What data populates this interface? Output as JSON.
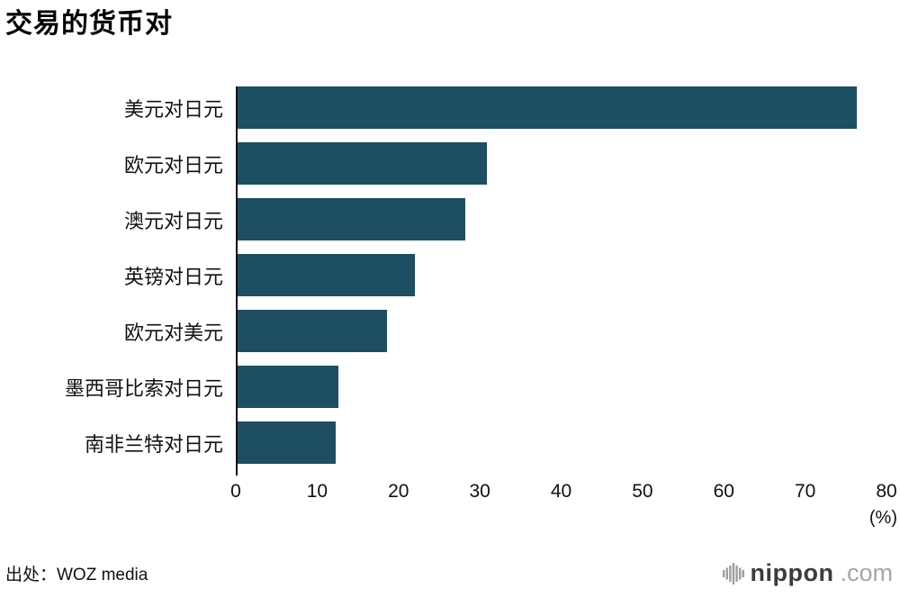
{
  "title": "交易的货币对",
  "source": "出处：WOZ media",
  "logo": {
    "name": "nippon",
    "tld": ".com"
  },
  "chart_data": {
    "type": "bar",
    "orientation": "horizontal",
    "title": "交易的货币对",
    "categories": [
      "美元对日元",
      "欧元对日元",
      "澳元对日元",
      "英镑对日元",
      "欧元对美元",
      "墨西哥比索对日元",
      "南非兰特对日元"
    ],
    "values": [
      76.3,
      30.7,
      28.1,
      21.9,
      18.4,
      12.4,
      12.1
    ],
    "xlabel": "(%)",
    "ylabel": "",
    "xlim": [
      0,
      80
    ],
    "xticks": [
      0,
      10,
      20,
      30,
      40,
      50,
      60,
      70,
      80
    ],
    "bar_color": "#1d4e63",
    "grid": false,
    "legend": false
  }
}
